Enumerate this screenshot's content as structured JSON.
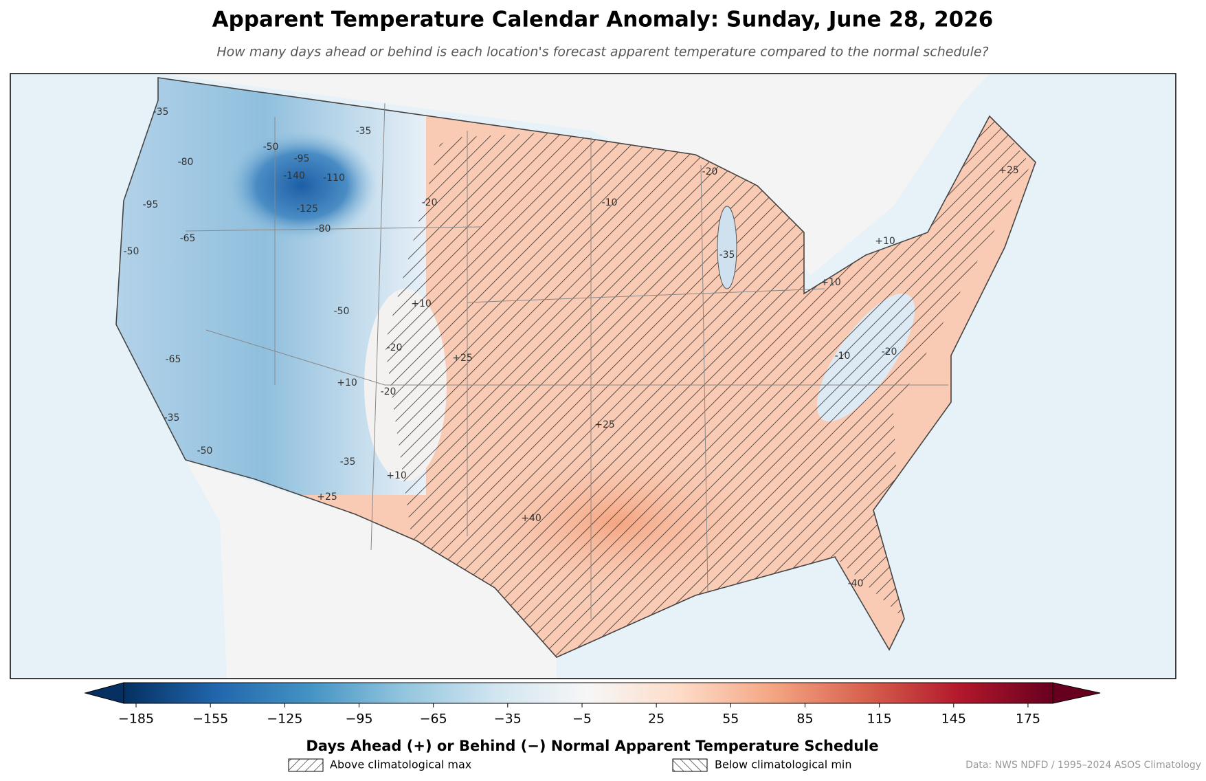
{
  "title": "Apparent Temperature Calendar Anomaly: Sunday, June 28, 2026",
  "subtitle": "How many days ahead or behind is each location's forecast apparent temperature compared to the normal schedule?",
  "colorbar": {
    "label": "Days Ahead (+) or Behind (−) Normal Apparent Temperature Schedule",
    "cmap": "RdBu_r",
    "lim": [
      -190,
      185
    ],
    "ticks": [
      {
        "value": -185,
        "label": "−185"
      },
      {
        "value": -155,
        "label": "−155"
      },
      {
        "value": -125,
        "label": "−125"
      },
      {
        "value": -95,
        "label": "−95"
      },
      {
        "value": -65,
        "label": "−65"
      },
      {
        "value": -35,
        "label": "−35"
      },
      {
        "value": -5,
        "label": "−5"
      },
      25,
      55,
      85,
      115,
      145,
      175
    ]
  },
  "legend": [
    "Above climatological max",
    "Below climatological min"
  ],
  "source": "Data: NWS NDFD / 1995–2024 ASOS Climatology",
  "contour_labels": [
    "-35",
    "-50",
    "-95",
    "-140",
    "-110",
    "-125",
    "-80",
    "-65",
    "-35",
    "-80",
    "-95",
    "-50",
    "-20",
    "-50",
    "-20",
    "+10",
    "-20",
    "-35",
    "+25",
    "+10",
    "+40",
    "+25",
    "-20",
    "-10",
    "+10",
    "+10",
    "+25",
    "-35",
    "-20",
    "-10",
    "+25",
    "+10",
    "-50",
    "-35",
    "-65",
    "-40"
  ]
}
